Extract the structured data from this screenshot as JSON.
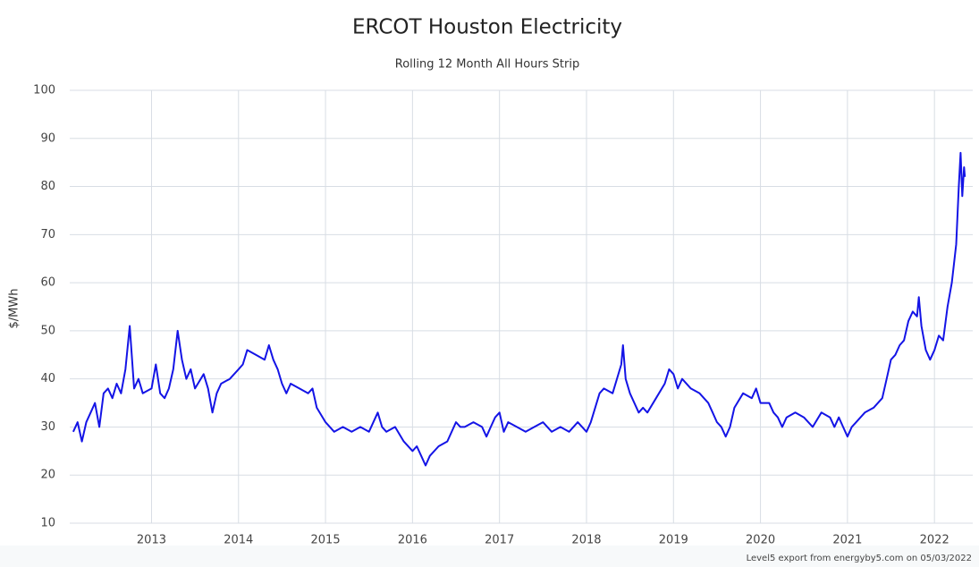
{
  "chart_data": {
    "type": "line",
    "title": "ERCOT Houston Electricity",
    "subtitle": "Rolling 12 Month All Hours Strip",
    "y_label": "$/MWh",
    "footer": "Level5 export from energyby5.com on 05/03/2022",
    "xlim": [
      2012.06,
      2022.44
    ],
    "xticks": [
      2013,
      2014,
      2015,
      2016,
      2017,
      2018,
      2019,
      2020,
      2021,
      2022
    ],
    "ylim": [
      10,
      100
    ],
    "yticks": [
      10,
      20,
      30,
      40,
      50,
      60,
      70,
      80,
      90,
      100
    ],
    "grid": true,
    "x": [
      2012.1,
      2012.15,
      2012.2,
      2012.25,
      2012.3,
      2012.35,
      2012.4,
      2012.45,
      2012.5,
      2012.55,
      2012.6,
      2012.65,
      2012.7,
      2012.75,
      2012.8,
      2012.85,
      2012.9,
      2013.0,
      2013.05,
      2013.1,
      2013.15,
      2013.2,
      2013.25,
      2013.3,
      2013.35,
      2013.4,
      2013.45,
      2013.5,
      2013.6,
      2013.65,
      2013.7,
      2013.75,
      2013.8,
      2013.9,
      2014.0,
      2014.05,
      2014.1,
      2014.2,
      2014.3,
      2014.35,
      2014.4,
      2014.45,
      2014.5,
      2014.55,
      2014.6,
      2014.7,
      2014.8,
      2014.85,
      2014.9,
      2015.0,
      2015.1,
      2015.2,
      2015.3,
      2015.4,
      2015.5,
      2015.6,
      2015.65,
      2015.7,
      2015.8,
      2015.9,
      2016.0,
      2016.05,
      2016.1,
      2016.15,
      2016.2,
      2016.3,
      2016.4,
      2016.5,
      2016.55,
      2016.6,
      2016.7,
      2016.8,
      2016.85,
      2016.9,
      2016.95,
      2017.0,
      2017.05,
      2017.1,
      2017.2,
      2017.3,
      2017.4,
      2017.5,
      2017.6,
      2017.7,
      2017.8,
      2017.9,
      2018.0,
      2018.05,
      2018.1,
      2018.15,
      2018.2,
      2018.3,
      2018.4,
      2018.42,
      2018.45,
      2018.5,
      2018.6,
      2018.65,
      2018.7,
      2018.8,
      2018.9,
      2018.95,
      2019.0,
      2019.05,
      2019.1,
      2019.2,
      2019.3,
      2019.4,
      2019.45,
      2019.5,
      2019.55,
      2019.6,
      2019.65,
      2019.7,
      2019.8,
      2019.9,
      2019.95,
      2020.0,
      2020.1,
      2020.15,
      2020.2,
      2020.25,
      2020.3,
      2020.4,
      2020.5,
      2020.6,
      2020.7,
      2020.8,
      2020.85,
      2020.9,
      2020.95,
      2021.0,
      2021.05,
      2021.1,
      2021.2,
      2021.3,
      2021.4,
      2021.45,
      2021.5,
      2021.55,
      2021.6,
      2021.65,
      2021.7,
      2021.75,
      2021.8,
      2021.82,
      2021.85,
      2021.9,
      2021.95,
      2022.0,
      2022.05,
      2022.1,
      2022.15,
      2022.2,
      2022.25,
      2022.28,
      2022.3,
      2022.32,
      2022.34,
      2022.35
    ],
    "series": [
      {
        "name": "Houston",
        "color": "#1414e6",
        "values": [
          29,
          31,
          27,
          31,
          33,
          35,
          30,
          37,
          38,
          36,
          39,
          37,
          42,
          51,
          38,
          40,
          37,
          38,
          43,
          37,
          36,
          38,
          42,
          50,
          44,
          40,
          42,
          38,
          41,
          38,
          33,
          37,
          39,
          40,
          42,
          43,
          46,
          45,
          44,
          47,
          44,
          42,
          39,
          37,
          39,
          38,
          37,
          38,
          34,
          31,
          29,
          30,
          29,
          30,
          29,
          33,
          30,
          29,
          30,
          27,
          25,
          26,
          24,
          22,
          24,
          26,
          27,
          31,
          30,
          30,
          31,
          30,
          28,
          30,
          32,
          33,
          29,
          31,
          30,
          29,
          30,
          31,
          29,
          30,
          29,
          31,
          29,
          31,
          34,
          37,
          38,
          37,
          43,
          47,
          40,
          37,
          33,
          34,
          33,
          36,
          39,
          42,
          41,
          38,
          40,
          38,
          37,
          35,
          33,
          31,
          30,
          28,
          30,
          34,
          37,
          36,
          38,
          35,
          35,
          33,
          32,
          30,
          32,
          33,
          32,
          30,
          33,
          32,
          30,
          32,
          30,
          28,
          30,
          31,
          33,
          34,
          36,
          40,
          44,
          45,
          47,
          48,
          52,
          54,
          53,
          57,
          51,
          46,
          44,
          46,
          49,
          48,
          55,
          60,
          68,
          80,
          87,
          78,
          84,
          82
        ]
      }
    ]
  }
}
